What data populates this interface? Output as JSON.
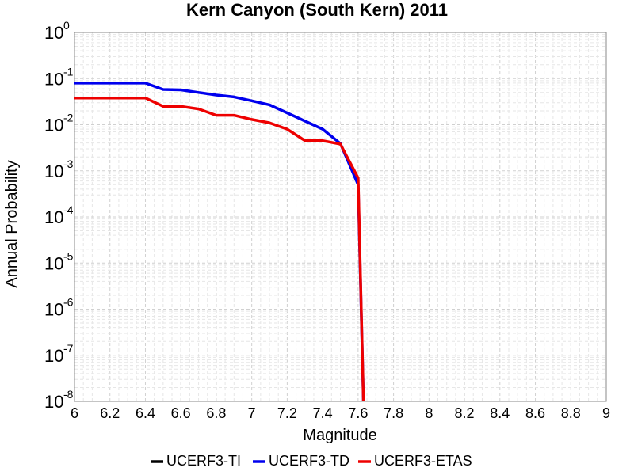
{
  "chart_data": {
    "type": "line",
    "title": "Kern Canyon (South Kern) 2011",
    "xlabel": "Magnitude",
    "ylabel": "Annual Probability",
    "xlim": [
      6,
      9
    ],
    "ylim": [
      1e-08,
      1
    ],
    "yscale": "log",
    "grid": true,
    "legend_position": "bottom",
    "x_ticks": [
      "6",
      "6.2",
      "6.4",
      "6.6",
      "6.8",
      "7",
      "7.2",
      "7.4",
      "7.6",
      "7.8",
      "8",
      "8.2",
      "8.4",
      "8.6",
      "8.8",
      "9"
    ],
    "y_tick_exponents": [
      "0",
      "-1",
      "-2",
      "-3",
      "-4",
      "-5",
      "-6",
      "-7",
      "-8"
    ],
    "y_tick_base": "10",
    "series": [
      {
        "name": "UCERF3-TI",
        "color": "#000000",
        "x": [],
        "y": []
      },
      {
        "name": "UCERF3-TD",
        "color": "#0000ee",
        "x": [
          6.0,
          6.1,
          6.2,
          6.3,
          6.4,
          6.5,
          6.6,
          6.7,
          6.8,
          6.9,
          7.0,
          7.1,
          7.2,
          7.3,
          7.4,
          7.5,
          7.6,
          7.63
        ],
        "y": [
          0.08,
          0.08,
          0.08,
          0.08,
          0.08,
          0.058,
          0.057,
          0.05,
          0.044,
          0.04,
          0.033,
          0.027,
          0.018,
          0.012,
          0.008,
          0.0039,
          0.0005,
          1e-08
        ]
      },
      {
        "name": "UCERF3-ETAS",
        "color": "#ee0000",
        "x": [
          6.0,
          6.1,
          6.2,
          6.3,
          6.4,
          6.5,
          6.6,
          6.7,
          6.8,
          6.9,
          7.0,
          7.1,
          7.2,
          7.3,
          7.4,
          7.5,
          7.6,
          7.63
        ],
        "y": [
          0.038,
          0.038,
          0.038,
          0.038,
          0.038,
          0.025,
          0.025,
          0.022,
          0.016,
          0.016,
          0.013,
          0.011,
          0.008,
          0.0045,
          0.0045,
          0.0038,
          0.0007,
          1e-08
        ]
      }
    ]
  }
}
